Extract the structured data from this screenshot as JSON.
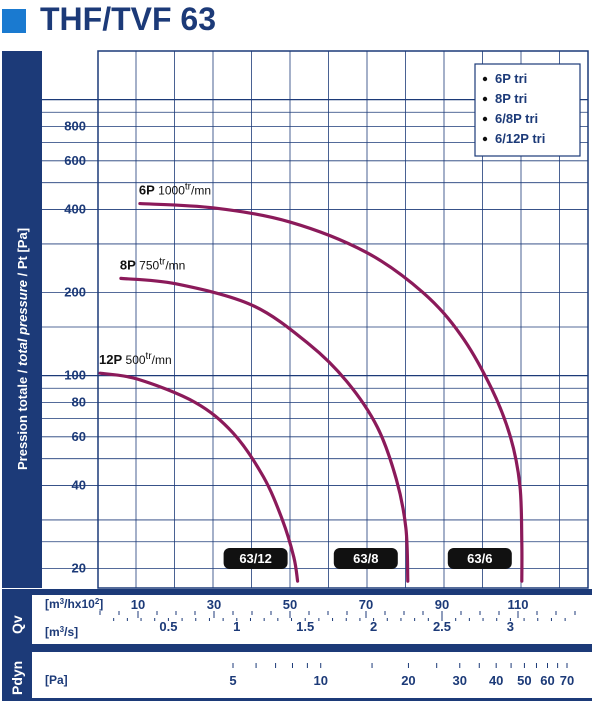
{
  "header": {
    "title": "THF/TVF 63",
    "accent": "#1a7ad0"
  },
  "colors": {
    "navy": "#1c3a78",
    "curve": "#8b1a5a",
    "grid": "#1c3a78",
    "bg": "#ffffff",
    "tagBg": "#111111"
  },
  "ylabel": {
    "part1": "Pression totale / ",
    "part2": "total pressure",
    "part3": " / Pt [Pa]"
  },
  "legend": [
    "6P tri",
    "8P tri",
    "6/8P tri",
    "6/12P tri"
  ],
  "rows": {
    "qv": {
      "label": "Qv",
      "unit1": "[m³/hx10²]",
      "unit2": "[m³/s]"
    },
    "pdyn": {
      "label": "Pdyn",
      "unit": "[Pa]"
    }
  },
  "chart_data": {
    "type": "line",
    "title": "THF/TVF 63",
    "xlabel": "Qv",
    "ylabel": "Pression totale / total pressure / Pt [Pa]",
    "y_scale": "log",
    "ylim": [
      17,
      1500
    ],
    "xlim": [
      0,
      125
    ],
    "y_ticks": [
      20,
      40,
      60,
      80,
      100,
      200,
      400,
      600,
      800
    ],
    "x_ticks_m3h": [
      10,
      30,
      50,
      70,
      90,
      110
    ],
    "x_ticks_m3s": [
      0.5,
      1,
      1.5,
      2,
      2.5,
      3
    ],
    "pdyn_ticks": [
      5,
      10,
      20,
      30,
      40,
      50,
      60,
      70
    ],
    "grid": true,
    "legend_position": "top-right",
    "series": [
      {
        "name": "6P",
        "label": "6P",
        "speed": "1000",
        "speed_unit_sup": "tr",
        "speed_unit": "/mn",
        "tag": "63/6",
        "points": [
          [
            10.5,
            420
          ],
          [
            30,
            405
          ],
          [
            50,
            360
          ],
          [
            70,
            280
          ],
          [
            85,
            200
          ],
          [
            95,
            140
          ],
          [
            103,
            90
          ],
          [
            108,
            60
          ],
          [
            110.5,
            40
          ],
          [
            111,
            25
          ],
          [
            111,
            18
          ]
        ]
      },
      {
        "name": "8P",
        "label": "8P",
        "speed": "750",
        "speed_unit_sup": "tr",
        "speed_unit": "/mn",
        "tag": "63/8",
        "points": [
          [
            5.5,
            225
          ],
          [
            20,
            215
          ],
          [
            40,
            180
          ],
          [
            55,
            130
          ],
          [
            65,
            95
          ],
          [
            73,
            65
          ],
          [
            78,
            42
          ],
          [
            80.5,
            28
          ],
          [
            81,
            18
          ]
        ]
      },
      {
        "name": "12P",
        "label": "12P",
        "speed": "500",
        "speed_unit_sup": "tr",
        "speed_unit": "/mn",
        "tag": "63/12",
        "points": [
          [
            0,
            102
          ],
          [
            10,
            97
          ],
          [
            25,
            80
          ],
          [
            35,
            62
          ],
          [
            43,
            43
          ],
          [
            48,
            30
          ],
          [
            51,
            22
          ],
          [
            52,
            18
          ]
        ]
      }
    ]
  }
}
